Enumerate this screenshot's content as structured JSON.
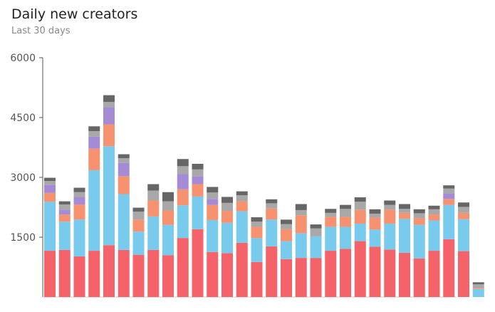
{
  "header": {
    "title": "Daily new creators",
    "subtitle": "Last 30 days"
  },
  "chart_data": {
    "type": "bar",
    "stacked": true,
    "title": "Daily new creators",
    "subtitle": "Last 30 days",
    "ylim": [
      0,
      6000
    ],
    "yticks": [
      1500,
      3000,
      4500,
      6000
    ],
    "grid": false,
    "legend": "none",
    "series_colors": [
      "#f46369",
      "#79cbee",
      "#f6926f",
      "#a58bd6",
      "#a8a8a8",
      "#666666"
    ],
    "series": [
      {
        "values": [
          1160,
          1180,
          1020,
          1160,
          1300,
          1180,
          1060,
          1180,
          1050,
          1480,
          1700,
          1130,
          1100,
          1360,
          880,
          1270,
          950,
          980,
          980,
          1160,
          1210,
          1400,
          1260,
          1190,
          1110,
          970,
          1160,
          1450,
          1150,
          0
        ]
      },
      {
        "values": [
          1230,
          710,
          920,
          2020,
          2480,
          1400,
          580,
          840,
          760,
          820,
          820,
          800,
          760,
          790,
          600,
          670,
          450,
          620,
          540,
          600,
          550,
          440,
          430,
          650,
          850,
          840,
          760,
          860,
          800,
          200
        ]
      },
      {
        "values": [
          220,
          180,
          380,
          540,
          550,
          450,
          300,
          400,
          360,
          400,
          310,
          380,
          300,
          250,
          280,
          280,
          300,
          450,
          0,
          250,
          250,
          350,
          300,
          350,
          150,
          170,
          150,
          150,
          160,
          20
        ]
      },
      {
        "values": [
          200,
          120,
          180,
          300,
          430,
          330,
          0,
          0,
          0,
          380,
          200,
          150,
          0,
          0,
          0,
          0,
          0,
          0,
          0,
          0,
          0,
          0,
          0,
          0,
          0,
          0,
          0,
          140,
          0,
          0
        ]
      },
      {
        "values": [
          100,
          130,
          130,
          140,
          130,
          120,
          200,
          250,
          230,
          200,
          170,
          160,
          200,
          150,
          130,
          130,
          130,
          130,
          200,
          100,
          200,
          200,
          100,
          120,
          100,
          120,
          130,
          120,
          150,
          100
        ]
      },
      {
        "values": [
          80,
          80,
          110,
          120,
          170,
          100,
          100,
          160,
          230,
          180,
          140,
          140,
          150,
          100,
          110,
          100,
          110,
          150,
          100,
          100,
          100,
          110,
          110,
          110,
          120,
          100,
          90,
          80,
          110,
          50
        ]
      }
    ]
  }
}
